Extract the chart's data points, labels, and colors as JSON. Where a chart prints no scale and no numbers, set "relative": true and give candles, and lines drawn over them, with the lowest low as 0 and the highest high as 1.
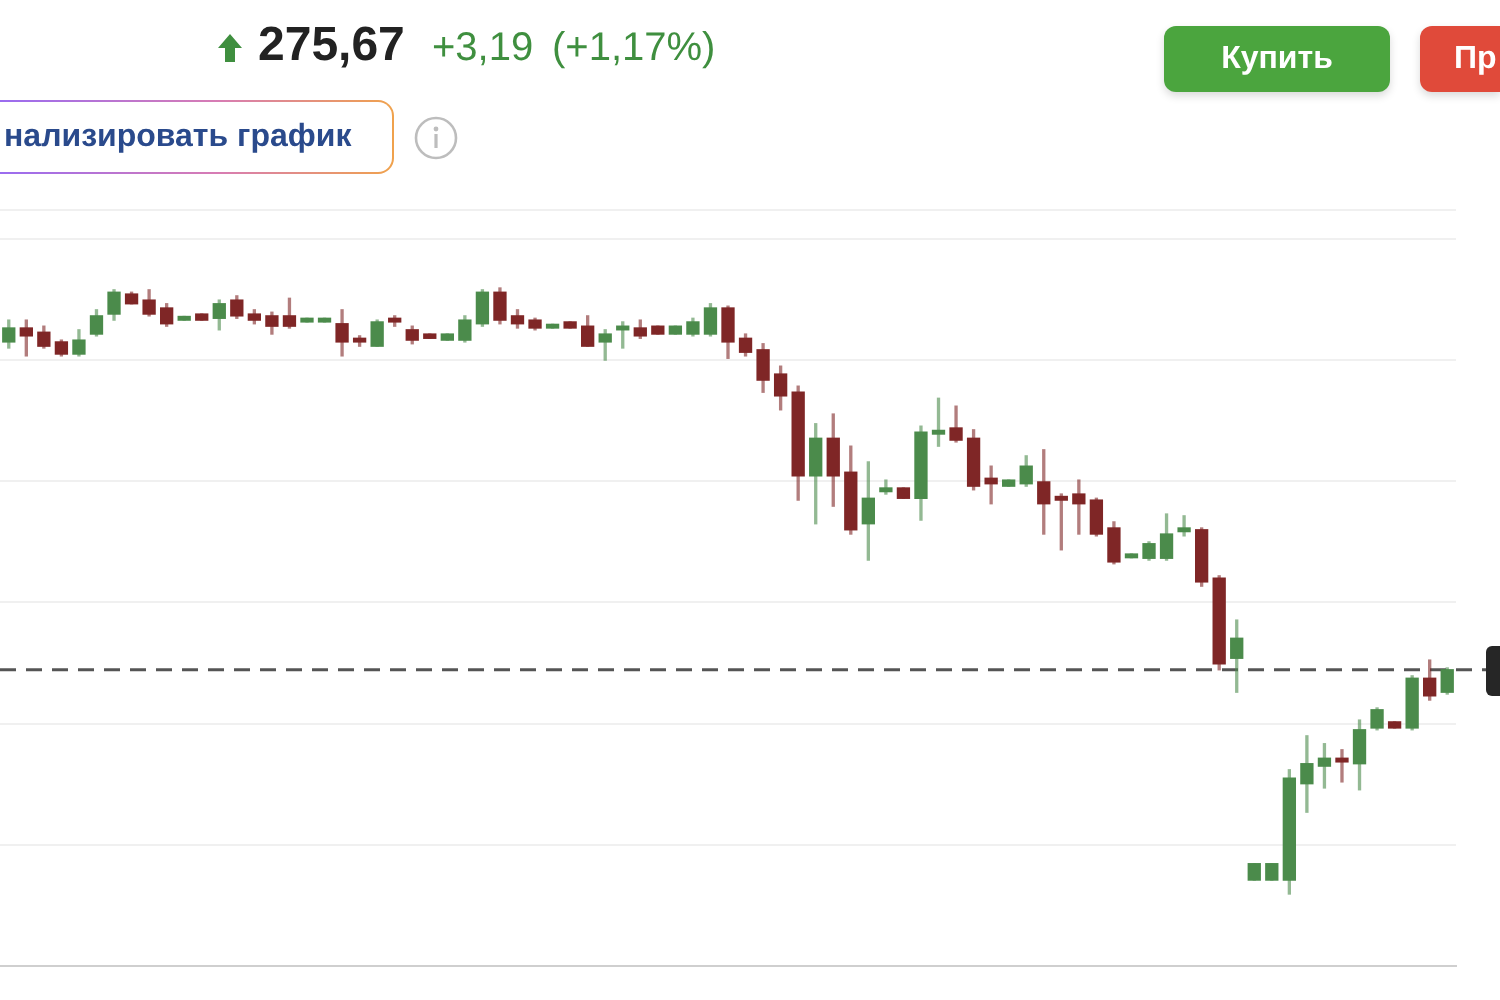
{
  "chart_data": {
    "type": "candlestick",
    "relative": true,
    "categories": [
      null,
      null,
      null,
      null,
      null,
      null,
      null,
      null,
      null,
      null,
      null,
      null,
      null,
      null,
      null,
      null,
      null,
      null,
      null,
      null,
      null,
      null,
      null,
      null,
      null,
      null,
      null,
      null,
      null,
      null,
      null,
      null,
      null,
      null,
      null,
      null,
      null,
      null,
      null,
      null,
      null,
      null,
      null,
      null,
      null,
      null,
      null,
      null,
      null,
      null,
      null,
      null,
      null,
      null,
      null,
      null,
      null,
      null,
      null,
      null,
      null,
      null,
      null,
      null,
      null,
      null,
      null,
      null,
      null,
      null,
      null,
      null,
      null,
      null,
      null,
      null,
      null,
      null,
      null,
      null,
      null,
      null,
      null
    ],
    "ohlc": [
      [
        0.911,
        0.947,
        0.901,
        0.934
      ],
      [
        0.934,
        0.947,
        0.888,
        0.921
      ],
      [
        0.927,
        0.937,
        0.901,
        0.904
      ],
      [
        0.911,
        0.914,
        0.888,
        0.891
      ],
      [
        0.891,
        0.931,
        0.888,
        0.914
      ],
      [
        0.924,
        0.964,
        0.921,
        0.954
      ],
      [
        0.957,
        0.997,
        0.947,
        0.993
      ],
      [
        0.99,
        0.993,
        0.974,
        0.974
      ],
      [
        0.98,
        0.997,
        0.954,
        0.957
      ],
      [
        0.967,
        0.974,
        0.937,
        0.941
      ],
      [
        0.947,
        0.953,
        0.947,
        0.953
      ],
      [
        0.957,
        0.957,
        0.947,
        0.947
      ],
      [
        0.95,
        0.98,
        0.931,
        0.974
      ],
      [
        0.98,
        0.987,
        0.95,
        0.954
      ],
      [
        0.957,
        0.964,
        0.941,
        0.947
      ],
      [
        0.954,
        0.96,
        0.924,
        0.937
      ],
      [
        0.954,
        0.983,
        0.934,
        0.937
      ],
      [
        0.944,
        0.95,
        0.944,
        0.95
      ],
      [
        0.944,
        0.95,
        0.944,
        0.95
      ],
      [
        0.941,
        0.964,
        0.888,
        0.911
      ],
      [
        0.917,
        0.921,
        0.904,
        0.911
      ],
      [
        0.904,
        0.947,
        0.904,
        0.944
      ],
      [
        0.95,
        0.954,
        0.937,
        0.944
      ],
      [
        0.931,
        0.937,
        0.908,
        0.914
      ],
      [
        0.924,
        0.924,
        0.917,
        0.917
      ],
      [
        0.914,
        0.924,
        0.914,
        0.924
      ],
      [
        0.914,
        0.954,
        0.911,
        0.947
      ],
      [
        0.941,
        0.997,
        0.937,
        0.993
      ],
      [
        0.993,
        1,
        0.941,
        0.947
      ],
      [
        0.954,
        0.964,
        0.934,
        0.941
      ],
      [
        0.947,
        0.95,
        0.931,
        0.934
      ],
      [
        0.934,
        0.94,
        0.934,
        0.94
      ],
      [
        0.944,
        0.944,
        0.934,
        0.934
      ],
      [
        0.937,
        0.954,
        0.904,
        0.904
      ],
      [
        0.911,
        0.931,
        0.881,
        0.924
      ],
      [
        0.931,
        0.944,
        0.901,
        0.937
      ],
      [
        0.934,
        0.947,
        0.917,
        0.921
      ],
      [
        0.937,
        0.937,
        0.924,
        0.924
      ],
      [
        0.924,
        0.937,
        0.924,
        0.937
      ],
      [
        0.924,
        0.95,
        0.921,
        0.944
      ],
      [
        0.924,
        0.974,
        0.921,
        0.967
      ],
      [
        0.967,
        0.97,
        0.884,
        0.911
      ],
      [
        0.917,
        0.924,
        0.888,
        0.894
      ],
      [
        0.898,
        0.908,
        0.828,
        0.848
      ],
      [
        0.858,
        0.871,
        0.799,
        0.822
      ],
      [
        0.828,
        0.838,
        0.65,
        0.69
      ],
      [
        0.69,
        0.776,
        0.611,
        0.752
      ],
      [
        0.752,
        0.792,
        0.64,
        0.69
      ],
      [
        0.696,
        0.739,
        0.594,
        0.601
      ],
      [
        0.611,
        0.713,
        0.551,
        0.653
      ],
      [
        0.664,
        0.683,
        0.66,
        0.67
      ],
      [
        0.67,
        0.67,
        0.653,
        0.653
      ],
      [
        0.653,
        0.772,
        0.617,
        0.762
      ],
      [
        0.759,
        0.818,
        0.739,
        0.765
      ],
      [
        0.769,
        0.805,
        0.746,
        0.749
      ],
      [
        0.752,
        0.766,
        0.667,
        0.673
      ],
      [
        0.686,
        0.706,
        0.644,
        0.677
      ],
      [
        0.673,
        0.683,
        0.673,
        0.683
      ],
      [
        0.677,
        0.723,
        0.673,
        0.706
      ],
      [
        0.68,
        0.733,
        0.594,
        0.644
      ],
      [
        0.656,
        0.66,
        0.568,
        0.65
      ],
      [
        0.66,
        0.683,
        0.594,
        0.644
      ],
      [
        0.65,
        0.653,
        0.591,
        0.594
      ],
      [
        0.604,
        0.614,
        0.545,
        0.548
      ],
      [
        0.555,
        0.561,
        0.555,
        0.561
      ],
      [
        0.554,
        0.581,
        0.551,
        0.578
      ],
      [
        0.554,
        0.627,
        0.551,
        0.594
      ],
      [
        0.598,
        0.624,
        0.591,
        0.604
      ],
      [
        0.601,
        0.604,
        0.508,
        0.515
      ],
      [
        0.521,
        0.525,
        0.37,
        0.38
      ],
      [
        0.389,
        0.452,
        0.333,
        0.422
      ],
      [
        0.023,
        0.05,
        0.023,
        0.05
      ],
      [
        0.023,
        0.05,
        0.023,
        0.05
      ],
      [
        0.023,
        0.205,
        0,
        0.191
      ],
      [
        0.182,
        0.261,
        0.135,
        0.215
      ],
      [
        0.211,
        0.248,
        0.175,
        0.224
      ],
      [
        0.224,
        0.238,
        0.185,
        0.218
      ],
      [
        0.215,
        0.287,
        0.172,
        0.271
      ],
      [
        0.274,
        0.307,
        0.271,
        0.304
      ],
      [
        0.284,
        0.284,
        0.274,
        0.274
      ],
      [
        0.274,
        0.36,
        0.271,
        0.356
      ],
      [
        0.356,
        0.386,
        0.32,
        0.327
      ],
      [
        0.333,
        0.373,
        0.33,
        0.37
      ]
    ],
    "colors": [
      "#4b8b4b",
      "#7f2626",
      "#7f2626",
      "#7f2626",
      "#4b8b4b",
      "#4b8b4b",
      "#4b8b4b",
      "#7f2626",
      "#7f2626",
      "#7f2626",
      "#4b8b4b",
      "#7f2626",
      "#4b8b4b",
      "#7f2626",
      "#7f2626",
      "#7f2626",
      "#7f2626",
      "#4b8b4b",
      "#4b8b4b",
      "#7f2626",
      "#7f2626",
      "#4b8b4b",
      "#7f2626",
      "#7f2626",
      "#7f2626",
      "#4b8b4b",
      "#4b8b4b",
      "#4b8b4b",
      "#7f2626",
      "#7f2626",
      "#7f2626",
      "#4b8b4b",
      "#7f2626",
      "#7f2626",
      "#4b8b4b",
      "#4b8b4b",
      "#7f2626",
      "#7f2626",
      "#4b8b4b",
      "#4b8b4b",
      "#4b8b4b",
      "#7f2626",
      "#7f2626",
      "#7f2626",
      "#7f2626",
      "#7f2626",
      "#4b8b4b",
      "#7f2626",
      "#7f2626",
      "#4b8b4b",
      "#4b8b4b",
      "#7f2626",
      "#4b8b4b",
      "#4b8b4b",
      "#7f2626",
      "#7f2626",
      "#7f2626",
      "#4b8b4b",
      "#4b8b4b",
      "#7f2626",
      "#7f2626",
      "#7f2626",
      "#7f2626",
      "#7f2626",
      "#4b8b4b",
      "#4b8b4b",
      "#4b8b4b",
      "#4b8b4b",
      "#7f2626",
      "#7f2626",
      "#4b8b4b",
      "#4b8b4b",
      "#4b8b4b",
      "#4b8b4b",
      "#4b8b4b",
      "#4b8b4b",
      "#7f2626",
      "#4b8b4b",
      "#4b8b4b",
      "#7f2626",
      "#4b8b4b",
      "#7f2626",
      "#4b8b4b"
    ],
    "grid": "y",
    "ref_lines": [
      {
        "axis": "y",
        "value": 0.37,
        "color": "#555555",
        "line_style": "dashed"
      }
    ],
    "annotations": [
      "275,67",
      "+3,19",
      "(+1,17%)",
      "нализировать график",
      "Купить",
      "Пр"
    ]
  }
}
